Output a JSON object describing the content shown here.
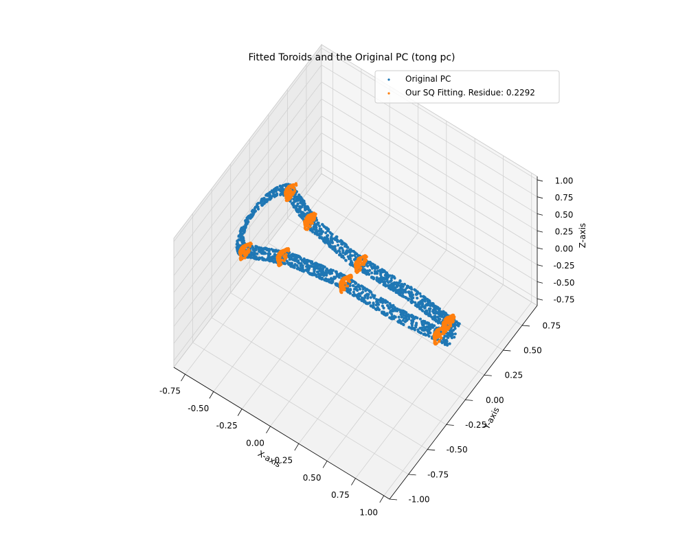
{
  "chart_data": {
    "type": "scatter",
    "projection": "3d",
    "title": "Fitted Toroids and the Original PC (tong pc)",
    "xlabel": "X-axis",
    "ylabel": "Y-axis",
    "zlabel": "Z-axis",
    "xlim": [
      -0.85,
      1.05
    ],
    "ylim": [
      -1.0,
      0.95
    ],
    "zlim": [
      -0.85,
      1.05
    ],
    "x_ticks": [
      "-0.75",
      "-0.50",
      "-0.25",
      "0.00",
      "0.25",
      "0.50",
      "0.75",
      "1.00"
    ],
    "y_ticks": [
      "-1.00",
      "-0.75",
      "-0.50",
      "-0.25",
      "0.00",
      "0.25",
      "0.50",
      "0.75"
    ],
    "z_ticks": [
      "-0.75",
      "-0.50",
      "-0.25",
      "0.00",
      "0.25",
      "0.50",
      "0.75",
      "1.00"
    ],
    "grid": true,
    "legend_position": "top-right",
    "series": [
      {
        "name": "Original PC",
        "color": "#1f77b4",
        "shape": "two elongated tong arms joined by a loop at x=-0.7; centerline (x, y) at z=0",
        "arm_upper": [
          [
            -0.7,
            0.3
          ],
          [
            -0.4,
            0.17
          ],
          [
            0.0,
            0.1
          ],
          [
            0.5,
            0.1
          ],
          [
            0.95,
            0.05
          ]
        ],
        "arm_lower": [
          [
            -0.7,
            -0.3
          ],
          [
            -0.4,
            -0.17
          ],
          [
            0.0,
            -0.1
          ],
          [
            0.5,
            -0.1
          ],
          [
            0.95,
            -0.05
          ]
        ]
      },
      {
        "name": "Our SQ Fitting. Residue: 0.2292",
        "color": "#ff7f0e",
        "shape": "small toroid rings placed along the arms; ring centers (x, y, z)",
        "centers": [
          [
            -0.7,
            0.3,
            0.0
          ],
          [
            -0.7,
            -0.3,
            0.0
          ],
          [
            -0.45,
            0.18,
            0.0
          ],
          [
            -0.45,
            -0.18,
            0.0
          ],
          [
            0.05,
            0.1,
            0.0
          ],
          [
            0.05,
            -0.1,
            0.0
          ],
          [
            0.85,
            0.06,
            0.0
          ],
          [
            0.85,
            -0.06,
            0.0
          ]
        ]
      }
    ]
  }
}
